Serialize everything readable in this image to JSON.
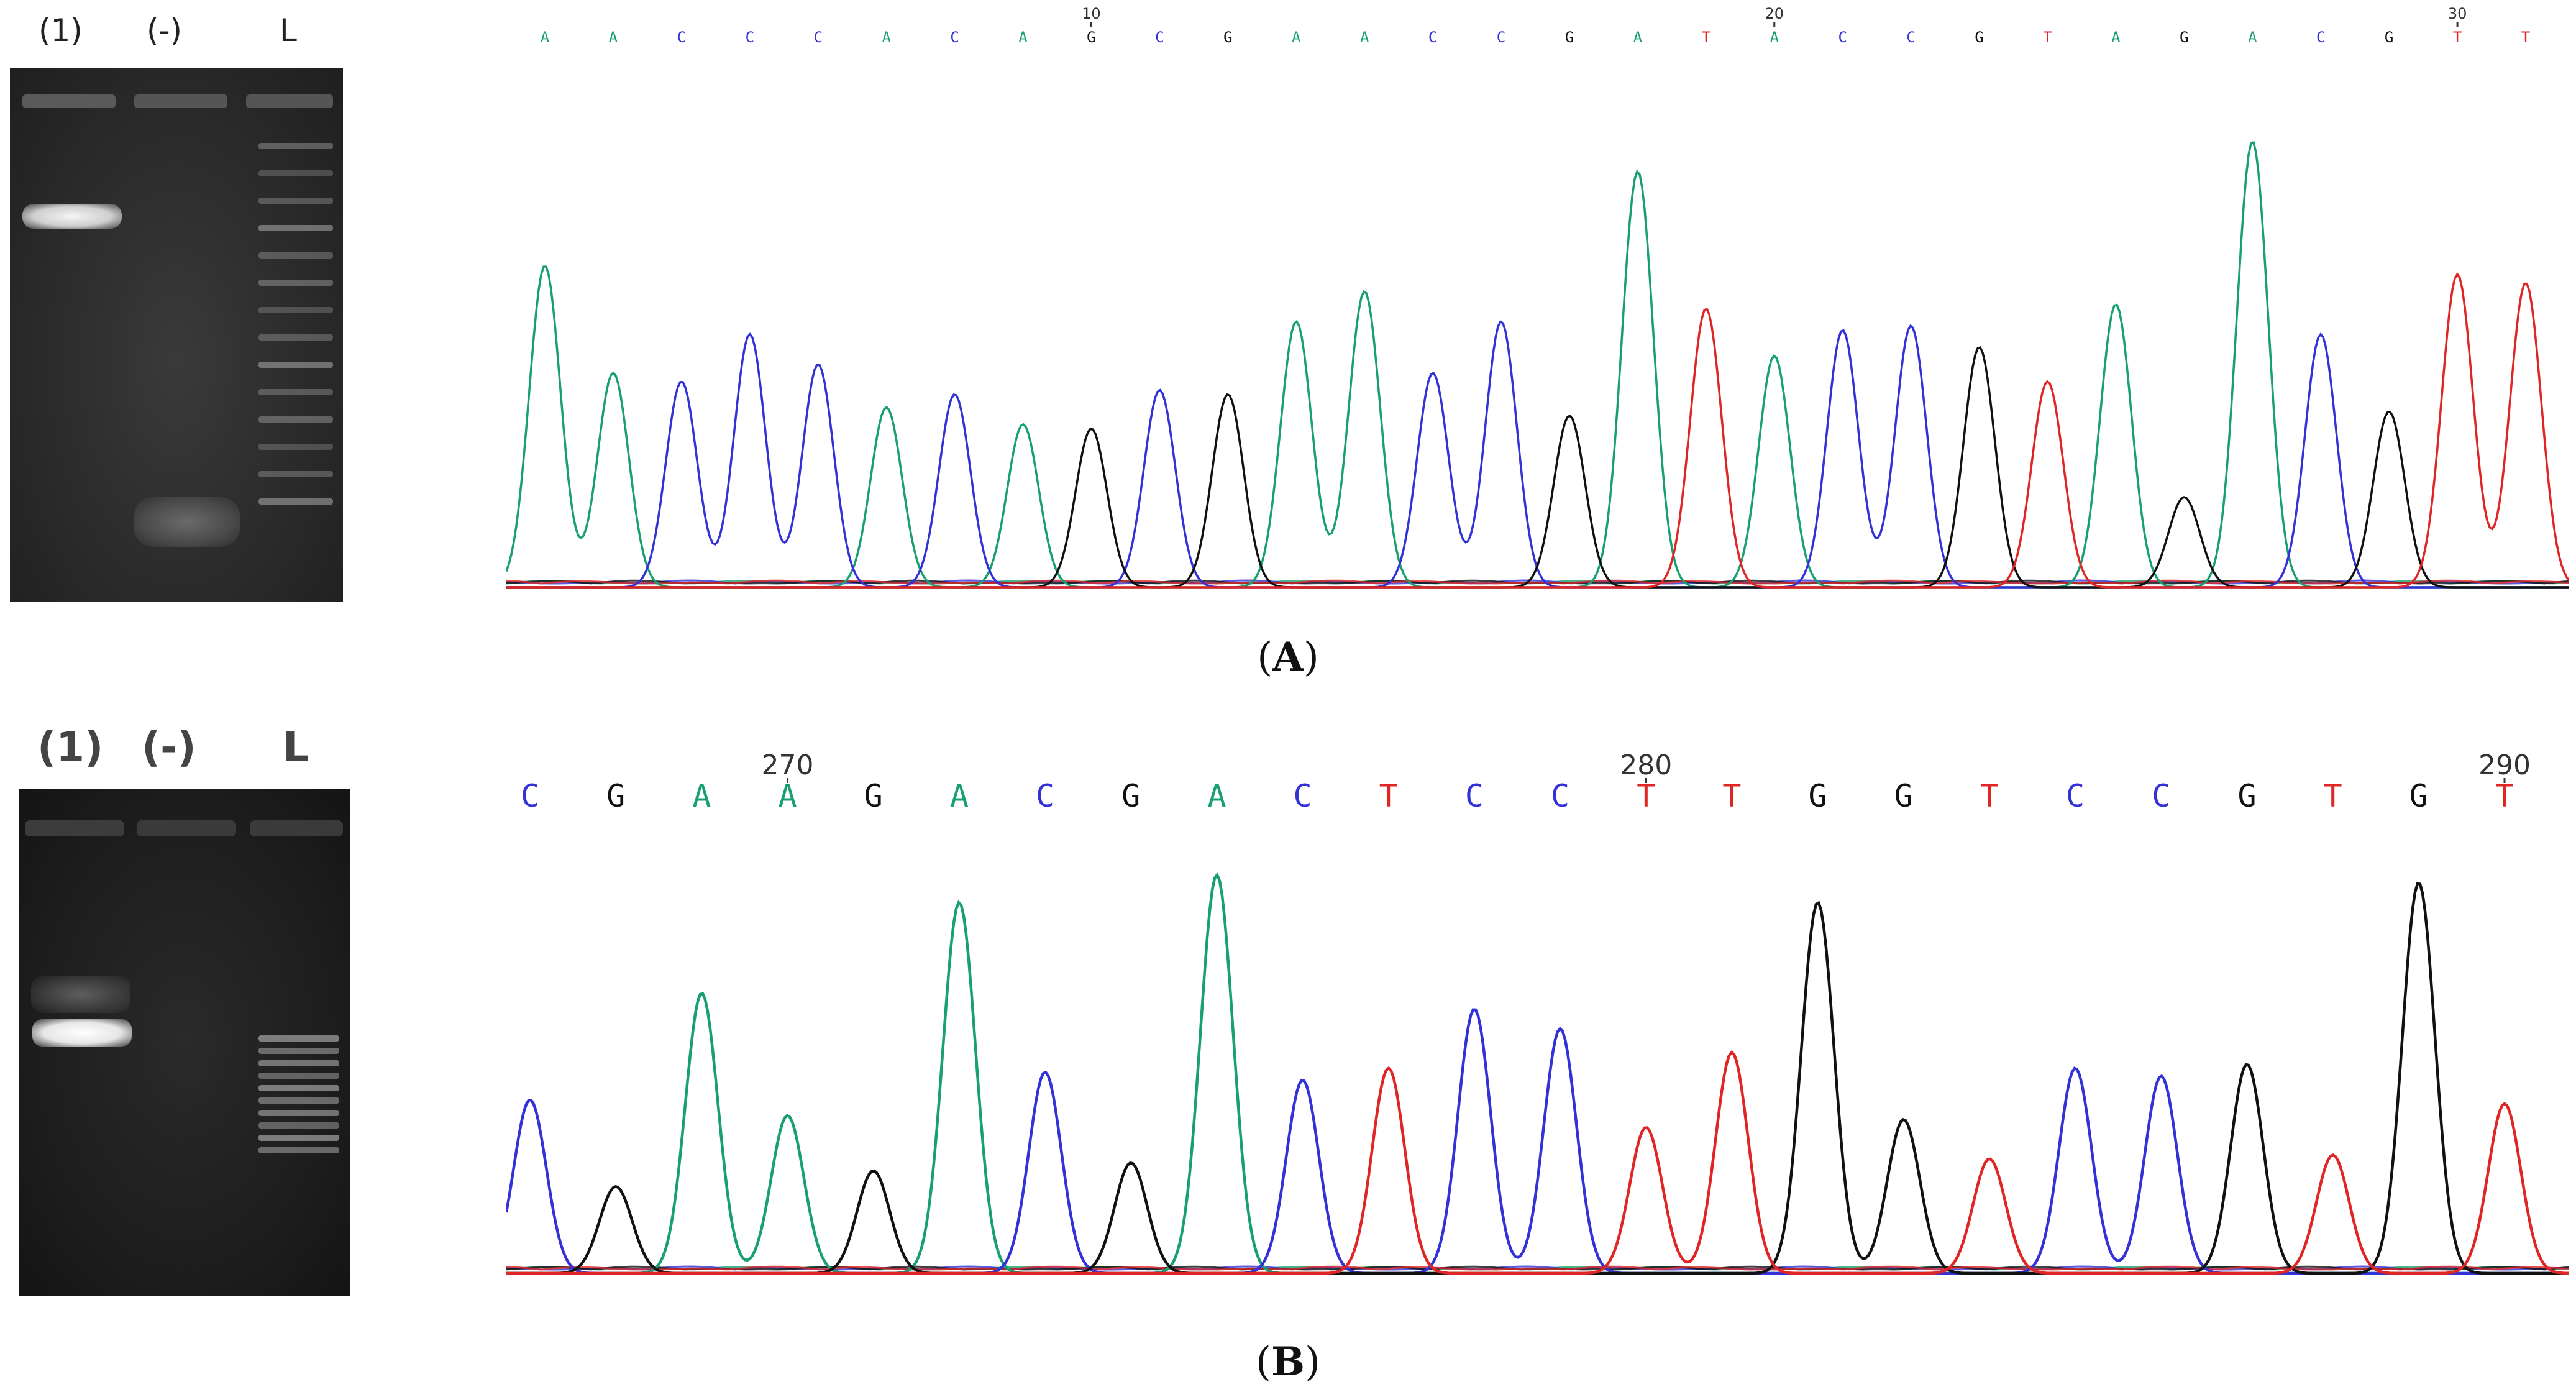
{
  "colors": {
    "A": "#18a070",
    "C": "#3232d8",
    "G": "#111111",
    "T": "#e02525"
  },
  "panels": [
    {
      "id": "panel-a",
      "letter": "A",
      "lane_labels": [
        "(1)",
        "(-)",
        "L"
      ],
      "ruler_ticks": [
        {
          "index": 8,
          "label": "10"
        },
        {
          "index": 18,
          "label": "20"
        },
        {
          "index": 28,
          "label": "30"
        }
      ],
      "sequence": [
        "A",
        "A",
        "C",
        "C",
        "C",
        "A",
        "C",
        "A",
        "G",
        "C",
        "G",
        "A",
        "A",
        "C",
        "C",
        "G",
        "A",
        "T",
        "A",
        "C",
        "C",
        "G",
        "T",
        "A",
        "G",
        "A",
        "C",
        "G",
        "T",
        "T"
      ],
      "peak_heights": [
        0.75,
        0.5,
        0.48,
        0.59,
        0.52,
        0.42,
        0.45,
        0.38,
        0.37,
        0.46,
        0.45,
        0.62,
        0.69,
        0.5,
        0.62,
        0.4,
        0.97,
        0.65,
        0.54,
        0.6,
        0.61,
        0.56,
        0.48,
        0.66,
        0.21,
        1.04,
        0.59,
        0.41,
        0.73,
        0.71
      ]
    },
    {
      "id": "panel-b",
      "letter": "B",
      "lane_labels": [
        "(1)",
        "(-)",
        "L"
      ],
      "ruler_ticks": [
        {
          "index": 3,
          "label": "270"
        },
        {
          "index": 13,
          "label": "280"
        },
        {
          "index": 23,
          "label": "290"
        }
      ],
      "sequence": [
        "C",
        "G",
        "A",
        "A",
        "G",
        "A",
        "C",
        "G",
        "A",
        "C",
        "T",
        "C",
        "C",
        "T",
        "T",
        "G",
        "G",
        "T",
        "C",
        "C",
        "G",
        "T",
        "G",
        "T"
      ],
      "peak_heights": [
        0.44,
        0.22,
        0.71,
        0.4,
        0.26,
        0.94,
        0.51,
        0.28,
        1.01,
        0.49,
        0.52,
        0.67,
        0.62,
        0.37,
        0.56,
        0.94,
        0.39,
        0.29,
        0.52,
        0.5,
        0.53,
        0.3,
        0.99,
        0.43
      ]
    }
  ]
}
